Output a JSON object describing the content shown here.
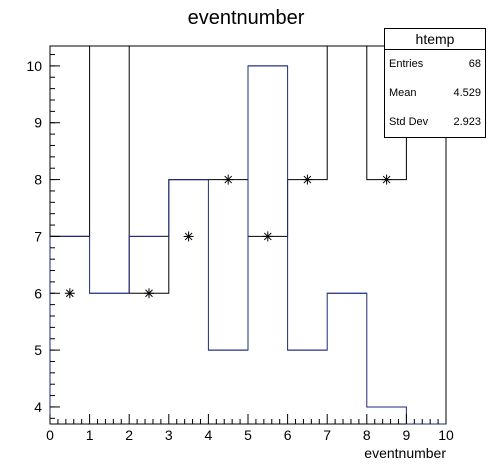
{
  "chart_data": {
    "type": "histogram",
    "title": "eventnumber",
    "xlabel": "eventnumber",
    "ylabel": "",
    "xlim": [
      0,
      10
    ],
    "ylim": [
      3.7,
      10.35
    ],
    "bins": [
      {
        "x0": 0,
        "x1": 1,
        "value": 7
      },
      {
        "x0": 1,
        "x1": 2,
        "value": 6
      },
      {
        "x0": 2,
        "x1": 3,
        "value": 7
      },
      {
        "x0": 3,
        "x1": 4,
        "value": 8
      },
      {
        "x0": 4,
        "x1": 5,
        "value": 5
      },
      {
        "x0": 5,
        "x1": 6,
        "value": 10
      },
      {
        "x0": 6,
        "x1": 7,
        "value": 5
      },
      {
        "x0": 7,
        "x1": 8,
        "value": 6
      },
      {
        "x0": 8,
        "x1": 9,
        "value": 4
      },
      {
        "x0": 9,
        "x1": 10,
        "value": 3.7
      }
    ],
    "background_steps": [
      {
        "x0": 0,
        "x1": 1,
        "value": 7
      },
      {
        "x0": 1,
        "x1": 2,
        "value": 10.35
      },
      {
        "x0": 2,
        "x1": 3,
        "value": 6
      },
      {
        "x0": 3,
        "x1": 4,
        "value": 8
      },
      {
        "x0": 4,
        "x1": 5,
        "value": 8
      },
      {
        "x0": 5,
        "x1": 6,
        "value": 7
      },
      {
        "x0": 6,
        "x1": 7,
        "value": 8
      },
      {
        "x0": 7,
        "x1": 8,
        "value": 10.35
      },
      {
        "x0": 8,
        "x1": 9,
        "value": 8
      },
      {
        "x0": 9,
        "x1": 10,
        "value": 10.35
      }
    ],
    "markers": [
      {
        "x": 0.5,
        "y": 6
      },
      {
        "x": 2.5,
        "y": 6
      },
      {
        "x": 3.5,
        "y": 7
      },
      {
        "x": 4.5,
        "y": 8
      },
      {
        "x": 5.5,
        "y": 7
      },
      {
        "x": 6.5,
        "y": 8
      },
      {
        "x": 8.5,
        "y": 8
      }
    ],
    "xticks": [
      "0",
      "1",
      "2",
      "3",
      "4",
      "5",
      "6",
      "7",
      "8",
      "9",
      "10"
    ],
    "yticks": [
      "4",
      "5",
      "6",
      "7",
      "8",
      "9",
      "10"
    ],
    "colors": {
      "histogram": "#1f2a7a",
      "background": "#000000"
    }
  },
  "stats": {
    "title": "htemp",
    "entries_label": "Entries",
    "entries_value": "68",
    "mean_label": "Mean",
    "mean_value": "4.529",
    "std_label": "Std Dev",
    "std_value": "2.923"
  }
}
